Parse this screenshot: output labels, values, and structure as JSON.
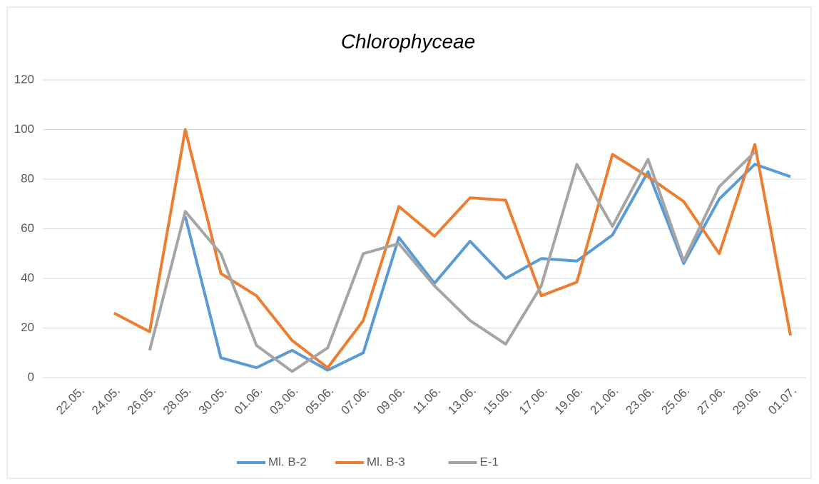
{
  "chart_data": {
    "type": "line",
    "title": "Chlorophyceae",
    "categories": [
      "22.05.",
      "24.05.",
      "26.05.",
      "28.05.",
      "30.05.",
      "01.06.",
      "03.06.",
      "05.06.",
      "07.06.",
      "09.06.",
      "11.06.",
      "13.06.",
      "15.06.",
      "17.06.",
      "19.06.",
      "21.06.",
      "23.06.",
      "25.06.",
      "27.06.",
      "29.06.",
      "01.07."
    ],
    "series": [
      {
        "name": "Ml. B-2",
        "color": "#5b9bd5",
        "values": [
          null,
          null,
          null,
          65,
          8,
          4,
          11,
          3,
          10,
          56.5,
          38,
          55,
          40,
          48,
          47,
          57.5,
          83,
          46,
          72,
          86,
          81
        ]
      },
      {
        "name": "Ml. B-3",
        "color": "#ed7d31",
        "values": [
          null,
          26,
          18.5,
          100,
          42,
          33,
          15,
          4,
          23,
          69,
          57,
          72.5,
          71.5,
          33,
          38.5,
          90,
          81,
          71,
          50,
          94,
          17
        ]
      },
      {
        "name": "E-1",
        "color": "#a5a5a5",
        "values": [
          null,
          null,
          11,
          67,
          50,
          13,
          2.5,
          12,
          50,
          54,
          37,
          23,
          13.5,
          37,
          86,
          61,
          88,
          47,
          77,
          91,
          null
        ]
      }
    ],
    "ylim": [
      0,
      120
    ],
    "yticks": [
      0,
      20,
      40,
      60,
      80,
      100,
      120
    ],
    "grid": true,
    "legend": "bottom"
  }
}
